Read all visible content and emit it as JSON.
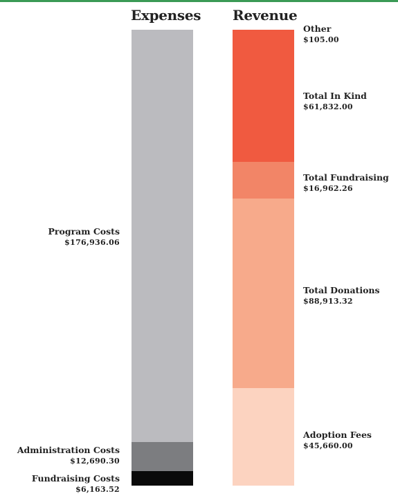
{
  "chart_data": {
    "type": "bar",
    "stacked": true,
    "categories": [
      "Expenses",
      "Revenue"
    ],
    "series": [
      {
        "name": "Expenses",
        "segments": [
          {
            "label": "Program Costs",
            "value_text": "$176,936.06",
            "value": 176936.06,
            "color": "#bbbbbf"
          },
          {
            "label": "Administration Costs",
            "value_text": "$12,690.30",
            "value": 12690.3,
            "color": "#7c7d80"
          },
          {
            "label": "Fundraising Costs",
            "value_text": "$6,163.52",
            "value": 6163.52,
            "color": "#0a0a0a"
          }
        ]
      },
      {
        "name": "Revenue",
        "segments": [
          {
            "label": "Other",
            "value_text": "$105.00",
            "value": 105.0,
            "color": "#f05a40"
          },
          {
            "label": "Total In Kind",
            "value_text": "$61,832.00",
            "value": 61832.0,
            "color": "#f05a40"
          },
          {
            "label": "Total Fundraising",
            "value_text": "$16,962.26",
            "value": 16962.26,
            "color": "#f28567"
          },
          {
            "label": "Total Donations",
            "value_text": "$88,913.32",
            "value": 88913.32,
            "color": "#f7aa8b"
          },
          {
            "label": "Adoption Fees",
            "value_text": "$45,660.00",
            "value": 45660.0,
            "color": "#fcd3c0"
          }
        ]
      }
    ]
  }
}
